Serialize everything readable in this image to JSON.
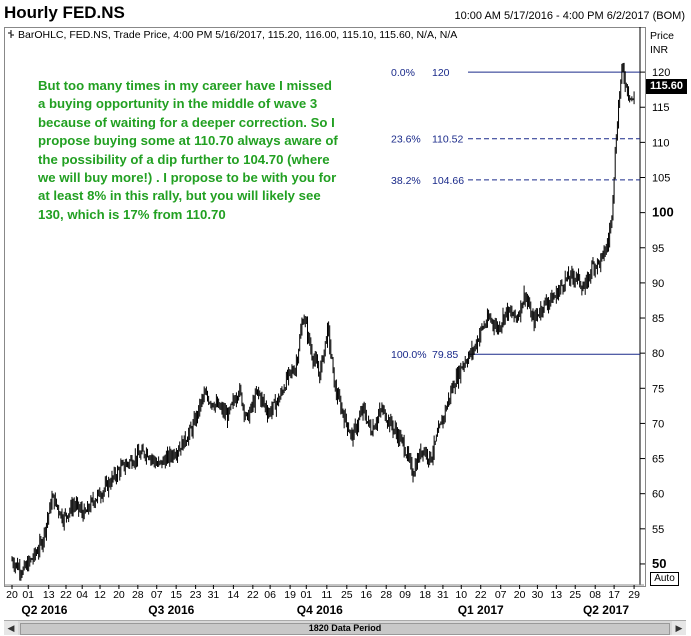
{
  "window": {
    "title": "Hourly FED.NS",
    "date_range": "10:00 AM 5/17/2016 - 4:00 PM 6/2/2017 (BOM)"
  },
  "chart_header": "BarOHLC, FED.NS, Trade Price, 4:00 PM 5/16/2017, 115.20, 116.00, 115.10, 115.60, N/A, N/A",
  "annotation": "But too many times in my career have I missed a buying opportunity in the middle of wave 3 because of waiting for a deeper correction. So I propose buying some at 110.70 always aware of the possibility of a dip further to 104.70 (where we will buy more!) . I propose to be with you for at least 8% in this rally, but you will likely see 130, which is 17% from 110.70",
  "y_axis": {
    "label_top": "Price",
    "label_unit": "INR",
    "last_price": "115.60",
    "auto_label": "Auto"
  },
  "scrollbar": {
    "label": "1820 Data Period"
  },
  "chart_data": {
    "type": "line",
    "style": "ohlc-bars",
    "title": "Hourly FED.NS",
    "ylim": [
      48,
      124
    ],
    "y_ticks": [
      50,
      55,
      60,
      65,
      70,
      75,
      80,
      85,
      90,
      95,
      100,
      105,
      110,
      115,
      120
    ],
    "y_ticks_bold": [
      50,
      100
    ],
    "x_ticks": [
      {
        "t": 0.0,
        "label": "20"
      },
      {
        "t": 0.03,
        "label": "01"
      },
      {
        "t": 0.068,
        "label": "13"
      },
      {
        "t": 0.1,
        "label": "22"
      },
      {
        "t": 0.13,
        "label": "04"
      },
      {
        "t": 0.163,
        "label": "12"
      },
      {
        "t": 0.198,
        "label": "20"
      },
      {
        "t": 0.233,
        "label": "28"
      },
      {
        "t": 0.268,
        "label": "07"
      },
      {
        "t": 0.304,
        "label": "15"
      },
      {
        "t": 0.34,
        "label": "23"
      },
      {
        "t": 0.373,
        "label": "31"
      },
      {
        "t": 0.41,
        "label": "14"
      },
      {
        "t": 0.446,
        "label": "22"
      },
      {
        "t": 0.478,
        "label": "06"
      },
      {
        "t": 0.515,
        "label": "19"
      },
      {
        "t": 0.545,
        "label": "01"
      },
      {
        "t": 0.583,
        "label": "11"
      },
      {
        "t": 0.62,
        "label": "25"
      },
      {
        "t": 0.656,
        "label": "16"
      },
      {
        "t": 0.693,
        "label": "28"
      },
      {
        "t": 0.728,
        "label": "09"
      },
      {
        "t": 0.765,
        "label": "18"
      },
      {
        "t": 0.798,
        "label": "31"
      },
      {
        "t": 0.832,
        "label": "10"
      },
      {
        "t": 0.868,
        "label": "22"
      },
      {
        "t": 0.905,
        "label": "07"
      },
      {
        "t": 0.94,
        "label": "20"
      },
      {
        "t": 0.973,
        "label": "30"
      },
      {
        "t": 1.008,
        "label": "13"
      },
      {
        "t": 1.043,
        "label": "25"
      },
      {
        "t": 1.08,
        "label": "08"
      },
      {
        "t": 1.115,
        "label": "17"
      },
      {
        "t": 1.152,
        "label": "29"
      }
    ],
    "periods": [
      {
        "t": 0.06,
        "label": "Q2 2016"
      },
      {
        "t": 0.295,
        "label": "Q3 2016"
      },
      {
        "t": 0.57,
        "label": "Q4 2016"
      },
      {
        "t": 0.868,
        "label": "Q1 2017"
      },
      {
        "t": 1.1,
        "label": "Q2 2017"
      }
    ],
    "fibonacci": [
      {
        "pct": "0.0%",
        "value": 120,
        "value_label": "120"
      },
      {
        "pct": "23.6%",
        "value": 110.52,
        "value_label": "110.52"
      },
      {
        "pct": "38.2%",
        "value": 104.66,
        "value_label": "104.66"
      },
      {
        "pct": "100.0%",
        "value": 79.85,
        "value_label": "79.85"
      }
    ],
    "price_path": [
      {
        "t": 0.0,
        "v": 50.5
      },
      {
        "t": 0.02,
        "v": 49.0
      },
      {
        "t": 0.04,
        "v": 51.0
      },
      {
        "t": 0.055,
        "v": 53.0
      },
      {
        "t": 0.075,
        "v": 59.5
      },
      {
        "t": 0.095,
        "v": 56.5
      },
      {
        "t": 0.115,
        "v": 58.5
      },
      {
        "t": 0.135,
        "v": 57.0
      },
      {
        "t": 0.15,
        "v": 59.0
      },
      {
        "t": 0.175,
        "v": 61.0
      },
      {
        "t": 0.2,
        "v": 63.5
      },
      {
        "t": 0.225,
        "v": 65.0
      },
      {
        "t": 0.25,
        "v": 66.0
      },
      {
        "t": 0.27,
        "v": 64.0
      },
      {
        "t": 0.295,
        "v": 65.5
      },
      {
        "t": 0.315,
        "v": 67.0
      },
      {
        "t": 0.335,
        "v": 69.5
      },
      {
        "t": 0.355,
        "v": 74.0
      },
      {
        "t": 0.38,
        "v": 72.5
      },
      {
        "t": 0.4,
        "v": 71.0
      },
      {
        "t": 0.42,
        "v": 75.0
      },
      {
        "t": 0.435,
        "v": 70.5
      },
      {
        "t": 0.455,
        "v": 74.5
      },
      {
        "t": 0.475,
        "v": 71.5
      },
      {
        "t": 0.495,
        "v": 73.5
      },
      {
        "t": 0.51,
        "v": 76.5
      },
      {
        "t": 0.525,
        "v": 78.0
      },
      {
        "t": 0.54,
        "v": 85.5
      },
      {
        "t": 0.555,
        "v": 80.0
      },
      {
        "t": 0.57,
        "v": 77.0
      },
      {
        "t": 0.585,
        "v": 83.5
      },
      {
        "t": 0.598,
        "v": 75.0
      },
      {
        "t": 0.615,
        "v": 71.0
      },
      {
        "t": 0.63,
        "v": 68.0
      },
      {
        "t": 0.65,
        "v": 72.0
      },
      {
        "t": 0.665,
        "v": 69.0
      },
      {
        "t": 0.685,
        "v": 72.0
      },
      {
        "t": 0.705,
        "v": 69.5
      },
      {
        "t": 0.725,
        "v": 67.0
      },
      {
        "t": 0.742,
        "v": 63.0
      },
      {
        "t": 0.76,
        "v": 66.5
      },
      {
        "t": 0.775,
        "v": 65.0
      },
      {
        "t": 0.795,
        "v": 70.0
      },
      {
        "t": 0.815,
        "v": 75.0
      },
      {
        "t": 0.835,
        "v": 78.5
      },
      {
        "t": 0.855,
        "v": 80.5
      },
      {
        "t": 0.87,
        "v": 83.5
      },
      {
        "t": 0.885,
        "v": 85.0
      },
      {
        "t": 0.9,
        "v": 83.5
      },
      {
        "t": 0.915,
        "v": 86.0
      },
      {
        "t": 0.935,
        "v": 85.0
      },
      {
        "t": 0.95,
        "v": 88.5
      },
      {
        "t": 0.965,
        "v": 84.5
      },
      {
        "t": 0.985,
        "v": 87.0
      },
      {
        "t": 1.005,
        "v": 88.0
      },
      {
        "t": 1.025,
        "v": 90.5
      },
      {
        "t": 1.045,
        "v": 91.0
      },
      {
        "t": 1.06,
        "v": 89.0
      },
      {
        "t": 1.075,
        "v": 92.5
      },
      {
        "t": 1.09,
        "v": 93.0
      },
      {
        "t": 1.103,
        "v": 95.5
      },
      {
        "t": 1.11,
        "v": 99.0
      },
      {
        "t": 1.116,
        "v": 107.0
      },
      {
        "t": 1.12,
        "v": 112.0
      },
      {
        "t": 1.125,
        "v": 117.0
      },
      {
        "t": 1.13,
        "v": 120.5
      },
      {
        "t": 1.138,
        "v": 118.0
      },
      {
        "t": 1.145,
        "v": 116.5
      },
      {
        "t": 1.152,
        "v": 115.6
      }
    ]
  }
}
